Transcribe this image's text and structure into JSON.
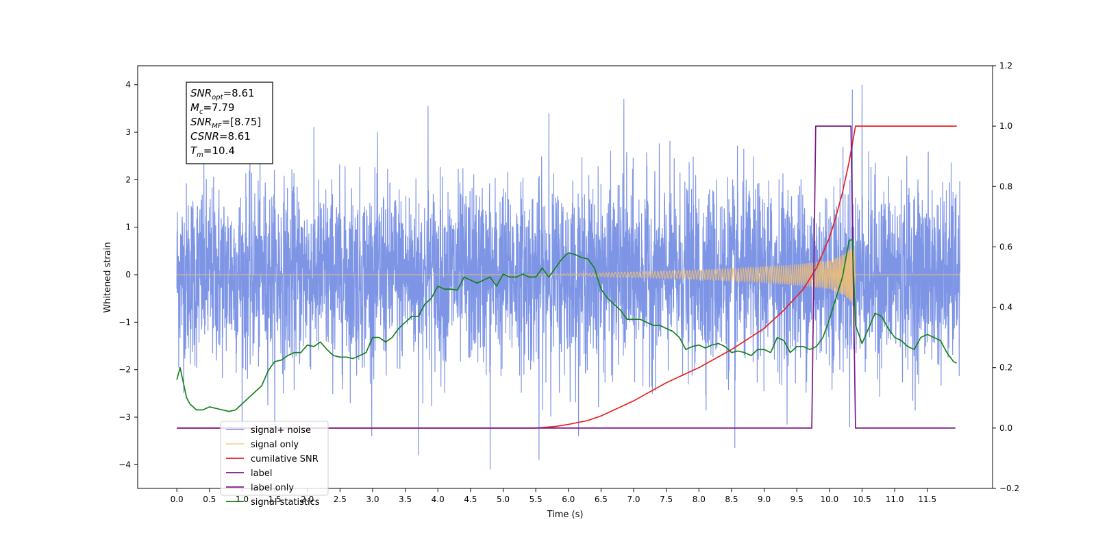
{
  "chart_data": {
    "type": "line",
    "xlabel": "Time (s)",
    "ylabel": "Whitened strain",
    "xlim": [
      -0.6,
      12.5
    ],
    "ylim_left": [
      -4.5,
      4.4
    ],
    "ylim_right": [
      -0.2,
      1.2
    ],
    "x_ticks": [
      0.0,
      0.5,
      1.0,
      1.5,
      2.0,
      2.5,
      3.0,
      3.5,
      4.0,
      4.5,
      5.0,
      5.5,
      6.0,
      6.5,
      7.0,
      7.5,
      8.0,
      8.5,
      9.0,
      9.5,
      10.0,
      10.5,
      11.0,
      11.5
    ],
    "x_tick_labels": [
      "0.0",
      "0.5",
      "1.0",
      "1.5",
      "2.0",
      "2.5",
      "3.0",
      "3.5",
      "4.0",
      "4.5",
      "5.0",
      "5.5",
      "6.0",
      "6.5",
      "7.0",
      "7.5",
      "8.0",
      "8.5",
      "9.0",
      "9.5",
      "10.0",
      "10.5",
      "11.0",
      "11.5"
    ],
    "y_left_ticks": [
      -4,
      -3,
      -2,
      -1,
      0,
      1,
      2,
      3,
      4
    ],
    "y_left_tick_labels": [
      "−4",
      "−3",
      "−2",
      "−1",
      "0",
      "1",
      "2",
      "3",
      "4"
    ],
    "y_right_ticks": [
      -0.2,
      0.0,
      0.2,
      0.4,
      0.6,
      0.8,
      1.0,
      1.2
    ],
    "y_right_tick_labels": [
      "−0.2",
      "0.0",
      "0.2",
      "0.4",
      "0.6",
      "0.8",
      "1.0",
      "1.2"
    ],
    "grid": false,
    "legend_position": "lower-left",
    "annotation": [
      {
        "base": "SNR",
        "sub": "opt",
        "value": "=8.61"
      },
      {
        "base": "M",
        "sub": "c",
        "value": "=7.79"
      },
      {
        "base": "SNR",
        "sub": "MF",
        "value": "=[8.75]"
      },
      {
        "base": "CSNR",
        "sub": "",
        "value": "=8.61"
      },
      {
        "base": "T",
        "sub": "m",
        "value": "=10.4"
      }
    ],
    "series": [
      {
        "name": "signal+ noise",
        "axis": "left",
        "color": "#7b93e6",
        "kind": "noise",
        "x_range": [
          0.0,
          12.0
        ],
        "amplitude_std": 1.0,
        "envelope_peaks": [
          {
            "x": 3.85,
            "y": 3.55
          },
          {
            "x": 5.7,
            "y": 3.4
          },
          {
            "x": 6.85,
            "y": 3.7
          },
          {
            "x": 10.35,
            "y": 3.9
          },
          {
            "x": 10.5,
            "y": 4.0
          },
          {
            "x": 4.8,
            "y": -4.1
          },
          {
            "x": 5.55,
            "y": -3.9
          },
          {
            "x": 8.55,
            "y": -3.65
          },
          {
            "x": 3.7,
            "y": -3.8
          }
        ]
      },
      {
        "name": "signal only",
        "axis": "left",
        "color": "#f5c16e",
        "kind": "chirp",
        "x_range": [
          0.0,
          12.0
        ],
        "envelope": {
          "x": [
            0.0,
            5.5,
            6.0,
            6.5,
            7.0,
            7.5,
            8.0,
            8.5,
            9.0,
            9.5,
            10.0,
            10.2,
            10.38,
            10.4,
            12.0
          ],
          "y": [
            0.0,
            0.005,
            0.02,
            0.04,
            0.06,
            0.08,
            0.1,
            0.13,
            0.17,
            0.22,
            0.3,
            0.42,
            0.62,
            0.0,
            0.0
          ]
        }
      },
      {
        "name": "cumilative SNR",
        "axis": "right",
        "color": "#e8201e",
        "x": [
          0.0,
          5.5,
          5.8,
          6.0,
          6.3,
          6.5,
          6.8,
          7.0,
          7.5,
          8.0,
          8.5,
          9.0,
          9.3,
          9.6,
          9.8,
          10.0,
          10.1,
          10.2,
          10.3,
          10.35,
          10.4,
          11.95
        ],
        "y": [
          0.0,
          0.0,
          0.005,
          0.012,
          0.025,
          0.04,
          0.07,
          0.09,
          0.15,
          0.2,
          0.26,
          0.33,
          0.39,
          0.46,
          0.53,
          0.63,
          0.7,
          0.78,
          0.88,
          0.94,
          1.0,
          1.0
        ]
      },
      {
        "name": "label",
        "axis": "right",
        "color": "#7d1686",
        "x": [
          0.0,
          9.73,
          9.79,
          10.33,
          10.4,
          11.93
        ],
        "y": [
          0.0,
          0.0,
          1.0,
          1.0,
          0.0,
          0.0
        ]
      },
      {
        "name": "label only",
        "axis": "right",
        "color": "#7d1686",
        "x": [],
        "y": []
      },
      {
        "name": "signal statistics",
        "axis": "right",
        "color": "#16801a",
        "x": [
          0.0,
          0.05,
          0.1,
          0.15,
          0.2,
          0.3,
          0.4,
          0.5,
          0.6,
          0.7,
          0.8,
          0.9,
          1.0,
          1.1,
          1.2,
          1.3,
          1.4,
          1.5,
          1.6,
          1.7,
          1.8,
          1.9,
          2.0,
          2.1,
          2.2,
          2.3,
          2.4,
          2.5,
          2.6,
          2.7,
          2.8,
          2.9,
          3.0,
          3.1,
          3.2,
          3.3,
          3.4,
          3.5,
          3.6,
          3.7,
          3.8,
          3.9,
          4.0,
          4.1,
          4.2,
          4.3,
          4.4,
          4.5,
          4.6,
          4.7,
          4.8,
          4.9,
          5.0,
          5.1,
          5.2,
          5.3,
          5.4,
          5.5,
          5.6,
          5.7,
          5.8,
          5.9,
          6.0,
          6.1,
          6.2,
          6.3,
          6.4,
          6.5,
          6.6,
          6.7,
          6.8,
          6.9,
          7.0,
          7.1,
          7.2,
          7.3,
          7.4,
          7.5,
          7.6,
          7.7,
          7.8,
          7.9,
          8.0,
          8.1,
          8.2,
          8.3,
          8.4,
          8.5,
          8.6,
          8.7,
          8.8,
          8.9,
          9.0,
          9.1,
          9.2,
          9.3,
          9.4,
          9.5,
          9.6,
          9.7,
          9.8,
          9.9,
          10.0,
          10.1,
          10.2,
          10.3,
          10.35,
          10.4,
          10.5,
          10.6,
          10.7,
          10.8,
          10.9,
          11.0,
          11.1,
          11.2,
          11.3,
          11.4,
          11.5,
          11.6,
          11.7,
          11.8,
          11.9,
          11.95
        ],
        "y": [
          0.16,
          0.2,
          0.15,
          0.1,
          0.08,
          0.06,
          0.06,
          0.07,
          0.065,
          0.06,
          0.055,
          0.06,
          0.08,
          0.1,
          0.12,
          0.14,
          0.19,
          0.22,
          0.225,
          0.24,
          0.25,
          0.25,
          0.275,
          0.27,
          0.285,
          0.26,
          0.24,
          0.235,
          0.235,
          0.23,
          0.24,
          0.25,
          0.3,
          0.3,
          0.285,
          0.3,
          0.33,
          0.35,
          0.37,
          0.37,
          0.41,
          0.43,
          0.47,
          0.46,
          0.46,
          0.457,
          0.5,
          0.49,
          0.48,
          0.49,
          0.5,
          0.47,
          0.51,
          0.5,
          0.5,
          0.51,
          0.5,
          0.5,
          0.53,
          0.5,
          0.53,
          0.56,
          0.58,
          0.575,
          0.565,
          0.56,
          0.53,
          0.46,
          0.43,
          0.41,
          0.39,
          0.36,
          0.36,
          0.36,
          0.35,
          0.34,
          0.34,
          0.33,
          0.32,
          0.3,
          0.26,
          0.27,
          0.275,
          0.265,
          0.275,
          0.28,
          0.27,
          0.25,
          0.255,
          0.25,
          0.24,
          0.26,
          0.26,
          0.25,
          0.3,
          0.29,
          0.25,
          0.27,
          0.27,
          0.26,
          0.27,
          0.3,
          0.36,
          0.43,
          0.5,
          0.62,
          0.625,
          0.34,
          0.28,
          0.33,
          0.38,
          0.37,
          0.33,
          0.3,
          0.29,
          0.27,
          0.26,
          0.3,
          0.31,
          0.3,
          0.29,
          0.25,
          0.22,
          0.215
        ]
      }
    ]
  }
}
